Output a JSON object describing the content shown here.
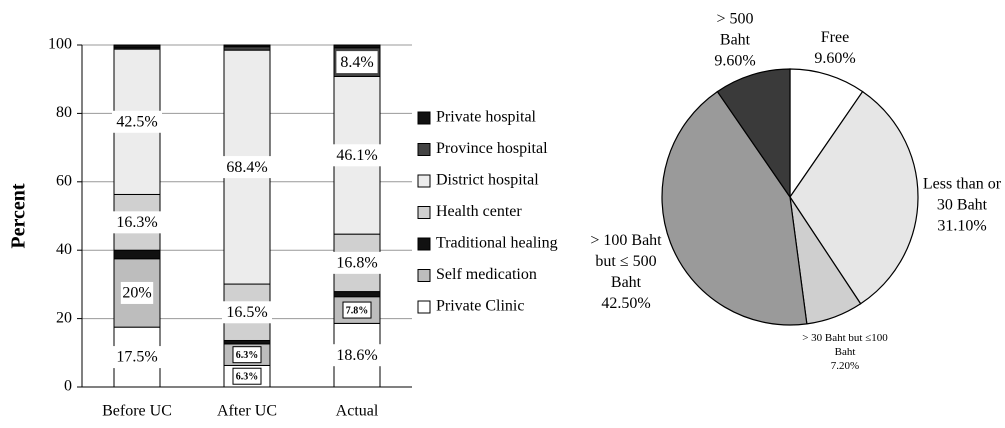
{
  "chart_data": [
    {
      "type": "stacked_bar",
      "y_label": "Percent",
      "categories": [
        "Before UC",
        "After UC",
        "Actual"
      ],
      "ylim": [
        0,
        100
      ],
      "yticks": [
        0,
        20,
        40,
        60,
        80,
        100
      ],
      "grid": true,
      "series": [
        {
          "name": "Private Clinic",
          "color": "#ffffff",
          "values": [
            17.5,
            6.3,
            18.6
          ],
          "value_labels": [
            "17.5%",
            "6.3%",
            "18.6%"
          ]
        },
        {
          "name": "Self medication",
          "color": "#bdbdbd",
          "values": [
            20,
            6.3,
            7.8
          ],
          "value_labels": [
            "20%",
            "6.3%",
            "7.8%"
          ]
        },
        {
          "name": "Traditional healing",
          "color": "#111111",
          "values": [
            2.5,
            1,
            1.5
          ],
          "value_labels": [
            null,
            null,
            null
          ]
        },
        {
          "name": "Health center",
          "color": "#d0d0d0",
          "values": [
            16.3,
            16.5,
            16.8
          ],
          "value_labels": [
            "16.3%",
            "16.5%",
            "16.8%"
          ]
        },
        {
          "name": "District hospital",
          "color": "#ececec",
          "values": [
            42.5,
            68.4,
            46.1
          ],
          "value_labels": [
            "42.5%",
            "68.4%",
            "46.1%"
          ]
        },
        {
          "name": "Province hospital",
          "color": "#444444",
          "values": [
            0.4,
            1,
            8.4
          ],
          "value_labels": [
            null,
            null,
            "8.4%"
          ]
        },
        {
          "name": "Private hospital",
          "color": "#111111",
          "values": [
            0.8,
            0.5,
            0.8
          ],
          "value_labels": [
            null,
            null,
            null
          ]
        }
      ]
    },
    {
      "type": "pie",
      "categories": [
        "Free",
        "Less than or 30 Baht",
        "> 30 Baht but ≤100 Baht",
        "> 100 Baht but ≤ 500 Baht",
        "> 500 Baht"
      ],
      "values": [
        9.6,
        31.1,
        7.2,
        42.5,
        9.6
      ],
      "value_labels": [
        "9.60%",
        "31.10%",
        "7.20%",
        "42.50%",
        "9.60%"
      ],
      "colors": [
        "#ffffff",
        "#e6e6e6",
        "#cfcfcf",
        "#9a9a9a",
        "#3a3a3a"
      ]
    }
  ]
}
